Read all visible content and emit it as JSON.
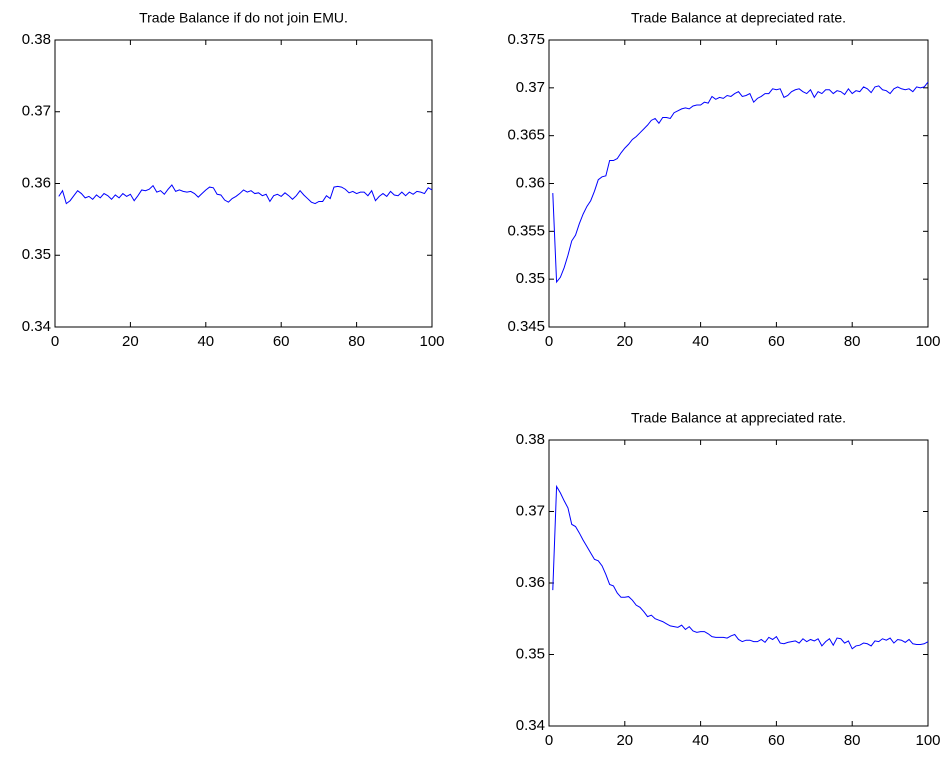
{
  "chart_data": [
    {
      "type": "line",
      "title": "Trade Balance if do not join EMU.",
      "color": "#0000ff",
      "xlim": [
        0,
        100
      ],
      "xticks": [
        0,
        20,
        40,
        60,
        80,
        100
      ],
      "ylim": [
        0.34,
        0.38
      ],
      "yticks": [
        0.34,
        0.35,
        0.36,
        0.37,
        0.38
      ],
      "x": [
        1,
        2,
        3,
        4,
        5,
        6,
        7,
        8,
        9,
        10,
        11,
        12,
        13,
        14,
        15,
        16,
        17,
        18,
        19,
        20,
        21,
        22,
        23,
        24,
        25,
        26,
        27,
        28,
        29,
        30,
        31,
        32,
        33,
        34,
        35,
        36,
        37,
        38,
        39,
        40,
        41,
        42,
        43,
        44,
        45,
        46,
        47,
        48,
        49,
        50,
        51,
        52,
        53,
        54,
        55,
        56,
        57,
        58,
        59,
        60,
        61,
        62,
        63,
        64,
        65,
        66,
        67,
        68,
        69,
        70,
        71,
        72,
        73,
        74,
        75,
        76,
        77,
        78,
        79,
        80,
        81,
        82,
        83,
        84,
        85,
        86,
        87,
        88,
        89,
        90,
        91,
        92,
        93,
        94,
        95,
        96,
        97,
        98,
        99,
        100
      ],
      "values": [
        0.3582,
        0.359,
        0.3572,
        0.3576,
        0.3583,
        0.359,
        0.3586,
        0.358,
        0.3582,
        0.3578,
        0.3584,
        0.358,
        0.3586,
        0.3583,
        0.3578,
        0.3584,
        0.358,
        0.3586,
        0.3582,
        0.3585,
        0.3576,
        0.3583,
        0.3591,
        0.359,
        0.3592,
        0.3597,
        0.3588,
        0.359,
        0.3585,
        0.3592,
        0.3598,
        0.3589,
        0.3591,
        0.3589,
        0.3588,
        0.3589,
        0.3586,
        0.3581,
        0.3586,
        0.3591,
        0.3595,
        0.3594,
        0.3585,
        0.3584,
        0.3577,
        0.3574,
        0.3579,
        0.3582,
        0.3586,
        0.3591,
        0.3588,
        0.359,
        0.3586,
        0.3587,
        0.3583,
        0.3585,
        0.3575,
        0.3583,
        0.3585,
        0.3582,
        0.3587,
        0.3583,
        0.3578,
        0.3583,
        0.359,
        0.3584,
        0.3579,
        0.3574,
        0.3572,
        0.3575,
        0.3575,
        0.3583,
        0.3579,
        0.3595,
        0.3596,
        0.3595,
        0.3592,
        0.3587,
        0.3589,
        0.3586,
        0.3588,
        0.3588,
        0.3583,
        0.359,
        0.3576,
        0.3582,
        0.3586,
        0.3582,
        0.3589,
        0.3584,
        0.3583,
        0.3588,
        0.3583,
        0.3588,
        0.3585,
        0.3589,
        0.3588,
        0.3586,
        0.3594,
        0.3591
      ]
    },
    {
      "type": "line",
      "title": "Trade Balance at depreciated rate.",
      "color": "#0000ff",
      "xlim": [
        0,
        100
      ],
      "xticks": [
        0,
        20,
        40,
        60,
        80,
        100
      ],
      "ylim": [
        0.345,
        0.375
      ],
      "yticks": [
        0.345,
        0.35,
        0.355,
        0.36,
        0.365,
        0.37,
        0.375
      ],
      "x": [
        1,
        2,
        3,
        4,
        5,
        6,
        7,
        8,
        9,
        10,
        11,
        12,
        13,
        14,
        15,
        16,
        17,
        18,
        19,
        20,
        21,
        22,
        23,
        24,
        25,
        26,
        27,
        28,
        29,
        30,
        31,
        32,
        33,
        34,
        35,
        36,
        37,
        38,
        39,
        40,
        41,
        42,
        43,
        44,
        45,
        46,
        47,
        48,
        49,
        50,
        51,
        52,
        53,
        54,
        55,
        56,
        57,
        58,
        59,
        60,
        61,
        62,
        63,
        64,
        65,
        66,
        67,
        68,
        69,
        70,
        71,
        72,
        73,
        74,
        75,
        76,
        77,
        78,
        79,
        80,
        81,
        82,
        83,
        84,
        85,
        86,
        87,
        88,
        89,
        90,
        91,
        92,
        93,
        94,
        95,
        96,
        97,
        98,
        99,
        100
      ],
      "values": [
        0.359,
        0.3497,
        0.3502,
        0.3512,
        0.3525,
        0.354,
        0.3546,
        0.3558,
        0.3568,
        0.3576,
        0.3582,
        0.3592,
        0.3604,
        0.3607,
        0.3608,
        0.3624,
        0.3624,
        0.3626,
        0.3632,
        0.3637,
        0.3641,
        0.3646,
        0.3649,
        0.3653,
        0.3657,
        0.3661,
        0.3666,
        0.3668,
        0.3663,
        0.3669,
        0.3669,
        0.3668,
        0.3674,
        0.3676,
        0.3678,
        0.3679,
        0.3678,
        0.3681,
        0.3682,
        0.3682,
        0.3685,
        0.3684,
        0.3691,
        0.3688,
        0.369,
        0.3689,
        0.3692,
        0.3691,
        0.3694,
        0.3696,
        0.3691,
        0.3692,
        0.3694,
        0.3685,
        0.3689,
        0.3691,
        0.3694,
        0.3694,
        0.3699,
        0.3698,
        0.3699,
        0.369,
        0.3692,
        0.3696,
        0.3698,
        0.3699,
        0.3696,
        0.3694,
        0.3698,
        0.369,
        0.3696,
        0.3694,
        0.3698,
        0.3698,
        0.3694,
        0.3697,
        0.3696,
        0.3693,
        0.3699,
        0.3694,
        0.3697,
        0.3696,
        0.3701,
        0.3699,
        0.3695,
        0.3701,
        0.3702,
        0.3698,
        0.3697,
        0.3694,
        0.3699,
        0.3701,
        0.3699,
        0.3698,
        0.3699,
        0.3696,
        0.3701,
        0.37,
        0.3701,
        0.3706
      ]
    },
    {
      "type": "line",
      "title": "Trade Balance at appreciated rate.",
      "color": "#0000ff",
      "xlim": [
        0,
        100
      ],
      "xticks": [
        0,
        20,
        40,
        60,
        80,
        100
      ],
      "ylim": [
        0.34,
        0.38
      ],
      "yticks": [
        0.34,
        0.35,
        0.36,
        0.37,
        0.38
      ],
      "x": [
        1,
        2,
        3,
        4,
        5,
        6,
        7,
        8,
        9,
        10,
        11,
        12,
        13,
        14,
        15,
        16,
        17,
        18,
        19,
        20,
        21,
        22,
        23,
        24,
        25,
        26,
        27,
        28,
        29,
        30,
        31,
        32,
        33,
        34,
        35,
        36,
        37,
        38,
        39,
        40,
        41,
        42,
        43,
        44,
        45,
        46,
        47,
        48,
        49,
        50,
        51,
        52,
        53,
        54,
        55,
        56,
        57,
        58,
        59,
        60,
        61,
        62,
        63,
        64,
        65,
        66,
        67,
        68,
        69,
        70,
        71,
        72,
        73,
        74,
        75,
        76,
        77,
        78,
        79,
        80,
        81,
        82,
        83,
        84,
        85,
        86,
        87,
        88,
        89,
        90,
        91,
        92,
        93,
        94,
        95,
        96,
        97,
        98,
        99,
        100
      ],
      "values": [
        0.359,
        0.3735,
        0.3726,
        0.3715,
        0.3705,
        0.3682,
        0.3679,
        0.367,
        0.366,
        0.3651,
        0.3642,
        0.3633,
        0.3631,
        0.3624,
        0.3612,
        0.3598,
        0.3596,
        0.3586,
        0.358,
        0.358,
        0.3581,
        0.3576,
        0.3569,
        0.3566,
        0.356,
        0.3553,
        0.3555,
        0.355,
        0.3548,
        0.3546,
        0.3543,
        0.354,
        0.3539,
        0.3538,
        0.3541,
        0.3535,
        0.3539,
        0.3533,
        0.3531,
        0.3532,
        0.3532,
        0.3529,
        0.3525,
        0.3524,
        0.3524,
        0.3524,
        0.3523,
        0.3526,
        0.3528,
        0.3521,
        0.3518,
        0.352,
        0.352,
        0.3518,
        0.3518,
        0.3521,
        0.3517,
        0.3524,
        0.3521,
        0.3525,
        0.3516,
        0.3515,
        0.3517,
        0.3518,
        0.3519,
        0.3516,
        0.3522,
        0.3518,
        0.3521,
        0.3519,
        0.3522,
        0.3512,
        0.3518,
        0.3522,
        0.3513,
        0.3523,
        0.3522,
        0.3516,
        0.3519,
        0.3508,
        0.3512,
        0.3513,
        0.3516,
        0.3515,
        0.3512,
        0.3519,
        0.3518,
        0.3522,
        0.352,
        0.3523,
        0.3516,
        0.3521,
        0.352,
        0.3517,
        0.3521,
        0.3515,
        0.3514,
        0.3514,
        0.3515,
        0.3518
      ]
    }
  ]
}
